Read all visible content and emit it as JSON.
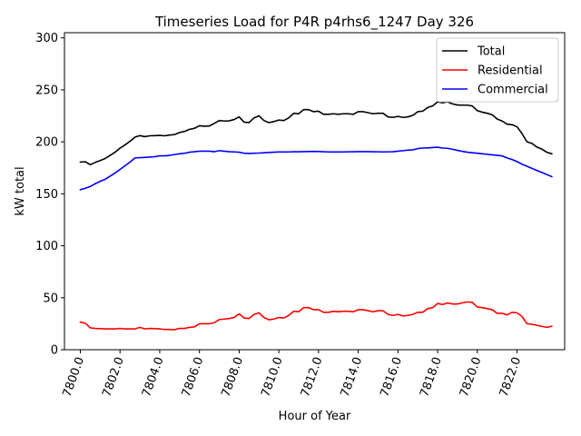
{
  "chart_data": {
    "type": "line",
    "title": "Timeseries Load for P4R p4rhs6_1247  Day 326",
    "xlabel": "Hour of Year",
    "ylabel": "kW total",
    "xlim": [
      7799.2,
      7824.4
    ],
    "ylim": [
      0,
      305
    ],
    "yticks": [
      0,
      50,
      100,
      150,
      200,
      250,
      300
    ],
    "xticks": [
      7800,
      7802,
      7804,
      7806,
      7808,
      7810,
      7812,
      7814,
      7816,
      7818,
      7820,
      7822
    ],
    "xtick_labels": [
      "7800.0",
      "7802.0",
      "7804.0",
      "7806.0",
      "7808.0",
      "7810.0",
      "7812.0",
      "7814.0",
      "7816.0",
      "7818.0",
      "7820.0",
      "7822.0"
    ],
    "legend_position": "top-right",
    "x": [
      7800.0,
      7800.25,
      7800.5,
      7800.75,
      7801.0,
      7801.25,
      7801.5,
      7801.75,
      7802.0,
      7802.25,
      7802.5,
      7802.75,
      7803.0,
      7803.25,
      7803.5,
      7803.75,
      7804.0,
      7804.25,
      7804.5,
      7804.75,
      7805.0,
      7805.25,
      7805.5,
      7805.75,
      7806.0,
      7806.25,
      7806.5,
      7806.75,
      7807.0,
      7807.25,
      7807.5,
      7807.75,
      7808.0,
      7808.25,
      7808.5,
      7808.75,
      7809.0,
      7809.25,
      7809.5,
      7809.75,
      7810.0,
      7810.25,
      7810.5,
      7810.75,
      7811.0,
      7811.25,
      7811.5,
      7811.75,
      7812.0,
      7812.25,
      7812.5,
      7812.75,
      7813.0,
      7813.25,
      7813.5,
      7813.75,
      7814.0,
      7814.25,
      7814.5,
      7814.75,
      7815.0,
      7815.25,
      7815.5,
      7815.75,
      7816.0,
      7816.25,
      7816.5,
      7816.75,
      7817.0,
      7817.25,
      7817.5,
      7817.75,
      7818.0,
      7818.25,
      7818.5,
      7818.75,
      7819.0,
      7819.25,
      7819.5,
      7819.75,
      7820.0,
      7820.25,
      7820.5,
      7820.75,
      7821.0,
      7821.25,
      7821.5,
      7821.75,
      7822.0,
      7822.25,
      7822.5,
      7822.75,
      7823.0,
      7823.25,
      7823.5,
      7823.75
    ],
    "series": [
      {
        "name": "Total",
        "color": "#000000",
        "values": [
          180.5,
          180.8,
          178.0,
          180.2,
          182.0,
          184.0,
          187.0,
          190.0,
          194.0,
          197.0,
          200.5,
          204.5,
          206.0,
          205.0,
          205.8,
          206.0,
          206.2,
          205.8,
          206.5,
          207.0,
          209.0,
          210.0,
          212.0,
          213.0,
          215.5,
          215.0,
          215.3,
          217.8,
          220.5,
          220.0,
          220.2,
          221.5,
          224.0,
          219.0,
          218.5,
          223.0,
          225.0,
          220.5,
          218.5,
          219.5,
          221.0,
          220.5,
          223.0,
          227.5,
          227.0,
          231.0,
          231.0,
          229.0,
          229.5,
          226.5,
          226.5,
          227.0,
          226.5,
          227.0,
          227.0,
          226.5,
          229.0,
          229.0,
          228.0,
          227.0,
          227.5,
          227.5,
          224.0,
          223.5,
          224.5,
          223.5,
          224.0,
          225.5,
          229.0,
          229.5,
          233.0,
          234.5,
          238.5,
          237.5,
          238.5,
          236.5,
          235.5,
          235.3,
          235.3,
          234.5,
          230.0,
          228.5,
          227.5,
          226.0,
          222.0,
          220.0,
          217.0,
          216.5,
          214.5,
          208.0,
          200.0,
          198.5,
          195.0,
          193.0,
          190.0,
          188.5
        ]
      },
      {
        "name": "Residential",
        "color": "#ff0000",
        "values": [
          26.5,
          25.5,
          21.0,
          20.5,
          20.3,
          20.0,
          20.0,
          20.0,
          20.5,
          20.0,
          20.0,
          20.0,
          21.5,
          20.0,
          20.5,
          20.3,
          20.0,
          19.5,
          19.5,
          19.2,
          20.5,
          20.5,
          21.5,
          22.0,
          25.0,
          25.0,
          25.0,
          26.0,
          29.0,
          29.5,
          30.0,
          31.0,
          34.5,
          30.5,
          30.0,
          34.0,
          35.5,
          31.0,
          28.8,
          29.5,
          31.0,
          30.5,
          33.0,
          37.0,
          36.5,
          40.5,
          40.5,
          38.5,
          38.5,
          36.0,
          36.0,
          37.0,
          36.5,
          37.0,
          37.0,
          36.5,
          38.5,
          38.5,
          37.5,
          36.5,
          37.5,
          37.5,
          34.0,
          33.0,
          34.0,
          32.5,
          33.0,
          34.0,
          36.0,
          36.0,
          39.5,
          40.5,
          44.5,
          43.5,
          45.0,
          44.0,
          44.0,
          45.0,
          46.0,
          45.5,
          41.0,
          40.5,
          39.5,
          38.5,
          35.0,
          35.0,
          33.5,
          36.0,
          35.5,
          32.0,
          25.0,
          24.5,
          23.5,
          22.5,
          21.5,
          22.5
        ]
      },
      {
        "name": "Commercial",
        "color": "#0000ff",
        "values": [
          154.0,
          155.3,
          157.0,
          159.7,
          162.0,
          164.0,
          167.0,
          170.0,
          173.5,
          177.0,
          180.5,
          184.5,
          184.8,
          185.0,
          185.3,
          185.7,
          186.5,
          186.5,
          187.0,
          187.8,
          188.5,
          189.0,
          190.0,
          190.5,
          191.0,
          191.0,
          191.0,
          190.5,
          191.5,
          191.0,
          190.5,
          190.3,
          190.0,
          189.0,
          188.8,
          189.0,
          189.2,
          189.5,
          189.8,
          190.0,
          190.2,
          190.2,
          190.3,
          190.5,
          190.5,
          190.6,
          190.7,
          190.8,
          190.7,
          190.5,
          190.3,
          190.2,
          190.2,
          190.3,
          190.4,
          190.5,
          190.6,
          190.6,
          190.6,
          190.5,
          190.4,
          190.3,
          190.4,
          190.5,
          191.0,
          191.5,
          192.0,
          192.3,
          193.5,
          194.0,
          194.2,
          194.5,
          194.8,
          194.0,
          193.8,
          192.8,
          191.8,
          190.8,
          190.0,
          189.5,
          189.0,
          188.5,
          188.0,
          187.5,
          187.0,
          186.5,
          184.5,
          183.0,
          181.0,
          178.5,
          176.5,
          174.5,
          172.5,
          170.5,
          168.5,
          166.5
        ]
      }
    ]
  }
}
